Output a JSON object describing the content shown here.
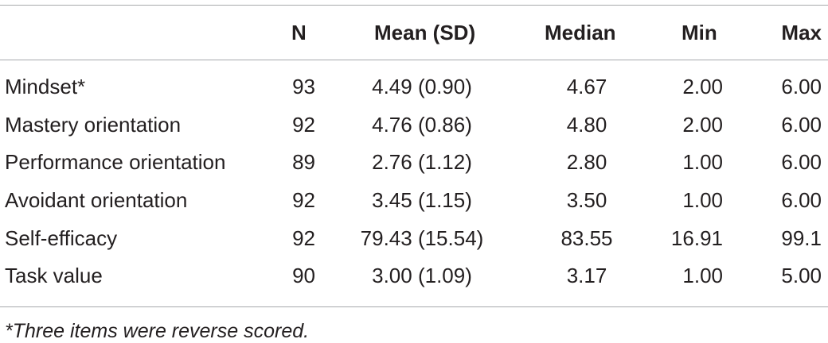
{
  "table": {
    "headers": [
      "",
      "N",
      "Mean (SD)",
      "Median",
      "Min",
      "Max"
    ],
    "rows": [
      {
        "label": "Mindset*",
        "n": "93",
        "mean_sd": "4.49 (0.90)",
        "median": "4.67",
        "min": "2.00",
        "max": "6.00"
      },
      {
        "label": "Mastery orientation",
        "n": "92",
        "mean_sd": "4.76 (0.86)",
        "median": "4.80",
        "min": "2.00",
        "max": "6.00"
      },
      {
        "label": "Performance orientation",
        "n": "89",
        "mean_sd": "2.76 (1.12)",
        "median": "2.80",
        "min": "1.00",
        "max": "6.00"
      },
      {
        "label": "Avoidant orientation",
        "n": "92",
        "mean_sd": "3.45 (1.15)",
        "median": "3.50",
        "min": "1.00",
        "max": "6.00"
      },
      {
        "label": "Self-efficacy",
        "n": "92",
        "mean_sd": "79.43 (15.54)",
        "median": "83.55",
        "min": "16.91",
        "max": "99.1"
      },
      {
        "label": "Task value",
        "n": "90",
        "mean_sd": "3.00 (1.09)",
        "median": "3.17",
        "min": "1.00",
        "max": "5.00"
      }
    ],
    "footnote": "*Three items were reverse scored."
  }
}
